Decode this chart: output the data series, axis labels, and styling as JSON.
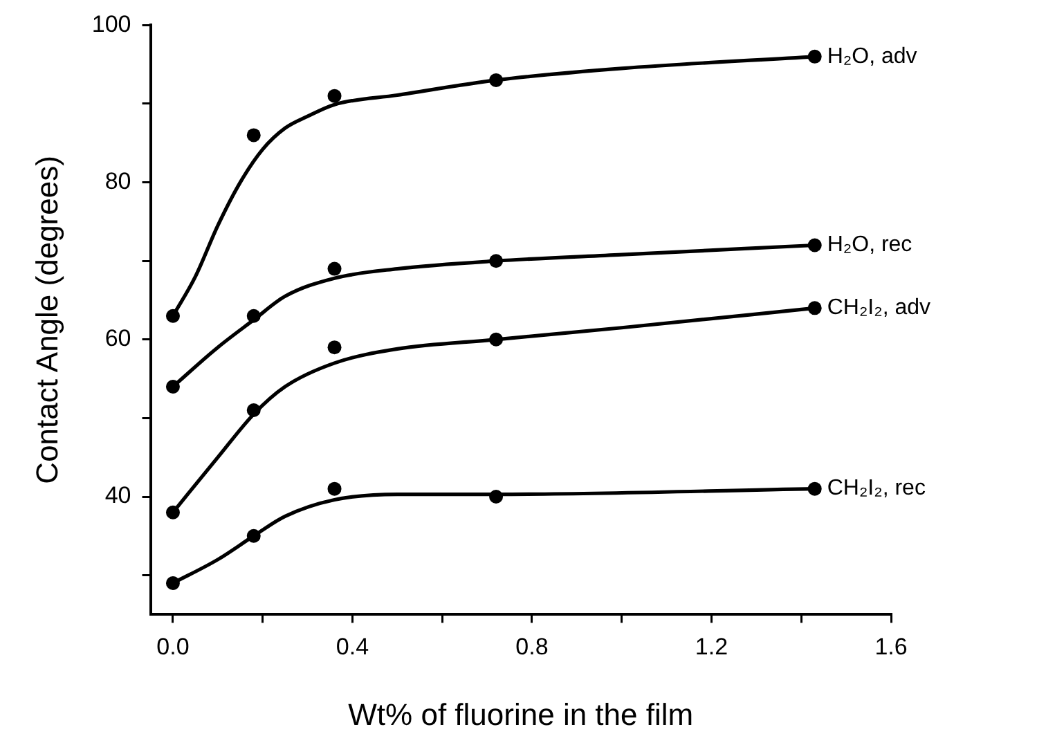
{
  "chart_data": {
    "type": "scatter",
    "xlabel": "Wt% of fluorine in the film",
    "ylabel": "Contact Angle (degrees)",
    "xlim": [
      -0.05,
      1.6
    ],
    "xticks": [
      {
        "value": 0,
        "label": "0.0"
      },
      {
        "value": 0.2,
        "label": null
      },
      0.4,
      {
        "value": 0.6,
        "label": null
      },
      0.8,
      {
        "value": 1.0,
        "label": null
      },
      1.2,
      {
        "value": 1.4,
        "label": null
      },
      1.6
    ],
    "ylim": [
      25,
      100
    ],
    "yticks": [
      {
        "value": 30,
        "label": null
      },
      40,
      {
        "value": 50,
        "label": null
      },
      60,
      {
        "value": 70,
        "label": null
      },
      80,
      {
        "value": 90,
        "label": null
      },
      100
    ],
    "grid": false,
    "legend": false,
    "marker": "circle",
    "x": [
      0,
      0.18,
      0.36,
      0.72,
      1.43
    ],
    "series": [
      {
        "name": "H₂O, adv",
        "color": "#000000",
        "values": [
          63,
          86,
          91,
          93,
          96
        ]
      },
      {
        "name": "H₂O, rec",
        "color": "#000000",
        "values": [
          54,
          63,
          69,
          70,
          72
        ]
      },
      {
        "name": "CH₂I₂, adv",
        "color": "#000000",
        "values": [
          38,
          51,
          59,
          60,
          64
        ]
      },
      {
        "name": "CH₂I₂, rec",
        "color": "#000000",
        "values": [
          29,
          35,
          41,
          40,
          41
        ]
      },
      {
        "type": "line",
        "marker": "none",
        "color": "#000000",
        "x": [
          0,
          0.05,
          0.1,
          0.15,
          0.2,
          0.25,
          0.3,
          0.36,
          0.5,
          0.72,
          1.0,
          1.43
        ],
        "values": [
          63,
          68,
          74.5,
          80,
          84.2,
          86.9,
          88.4,
          89.9,
          91.1,
          93,
          94.5,
          96
        ]
      },
      {
        "type": "line",
        "marker": "none",
        "color": "#000000",
        "x": [
          0,
          0.1,
          0.18,
          0.25,
          0.36,
          0.5,
          0.72,
          1.0,
          1.43
        ],
        "values": [
          54,
          59,
          62.5,
          65.5,
          67.8,
          69,
          70,
          70.8,
          72
        ]
      },
      {
        "type": "line",
        "marker": "none",
        "color": "#000000",
        "x": [
          0,
          0.1,
          0.18,
          0.25,
          0.36,
          0.5,
          0.72,
          1.0,
          1.43
        ],
        "values": [
          38,
          45,
          50.5,
          54,
          57,
          58.8,
          60,
          61.5,
          64
        ]
      },
      {
        "type": "line",
        "marker": "none",
        "color": "#000000",
        "x": [
          0,
          0.1,
          0.18,
          0.25,
          0.36,
          0.5,
          0.72,
          1.43
        ],
        "values": [
          29,
          32,
          35,
          37.5,
          39.6,
          40.3,
          40.3,
          41
        ]
      }
    ]
  }
}
